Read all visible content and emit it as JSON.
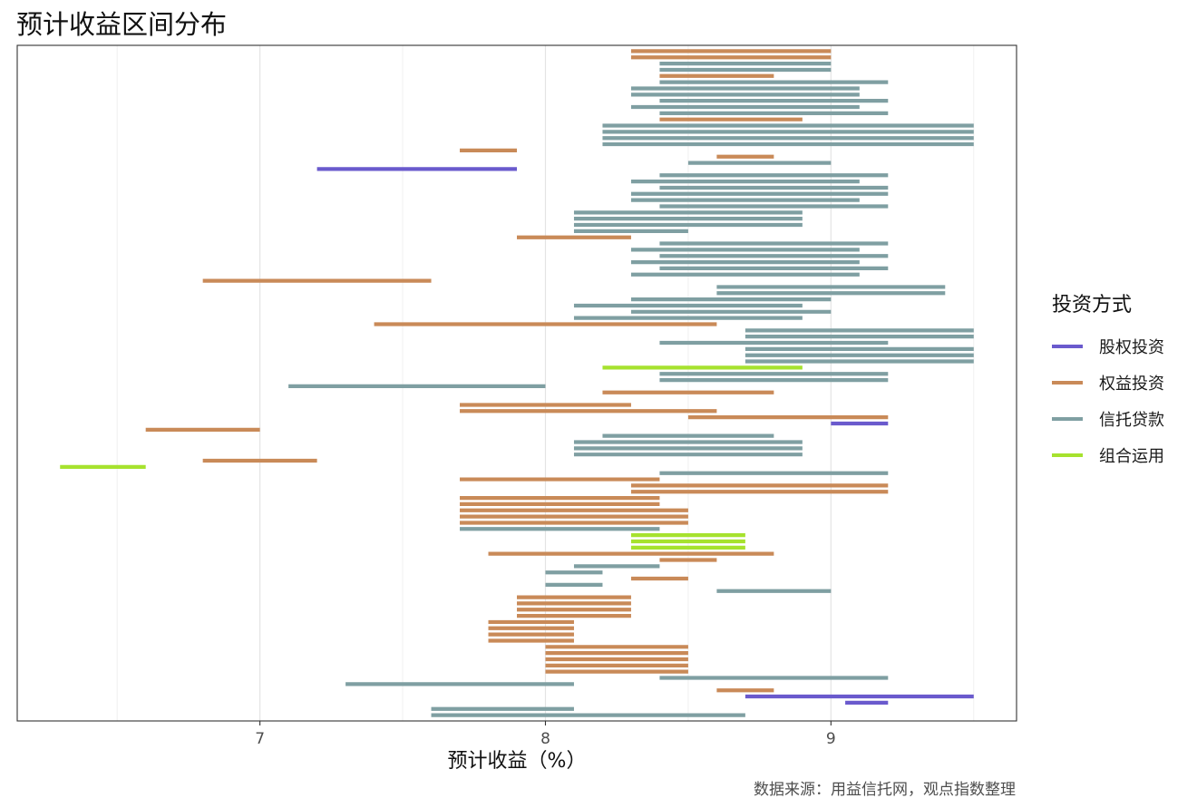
{
  "title": "预计收益区间分布",
  "caption": "数据来源：用益信托网，观点指数整理",
  "colors": {
    "股权投资": "#6a5acd",
    "权益投资": "#c98a58",
    "信托贷款": "#7f9fa2",
    "组合运用": "#a6e22e"
  },
  "chart_data": {
    "type": "bar",
    "orientation": "horizontal-range",
    "title": "预计收益区间分布",
    "xlabel": "预计收益（%）",
    "ylabel": "",
    "xlim": [
      6.15,
      9.65
    ],
    "xticks": [
      7,
      8,
      9
    ],
    "grid": true,
    "legend": {
      "title": "投资方式",
      "position": "right",
      "entries": [
        "股权投资",
        "权益投资",
        "信托贷款",
        "组合运用"
      ]
    },
    "series": [
      {
        "name": "股权投资",
        "ranges": [
          [
            7.2,
            7.9
          ],
          [
            9.0,
            9.2
          ],
          [
            8.7,
            9.5
          ],
          [
            9.05,
            9.2
          ]
        ]
      },
      {
        "name": "权益投资",
        "ranges": [
          [
            8.3,
            9.0
          ],
          [
            8.3,
            9.0
          ],
          [
            8.4,
            8.8
          ],
          [
            8.4,
            8.9
          ],
          [
            7.7,
            7.9
          ],
          [
            8.6,
            8.8
          ],
          [
            7.9,
            8.3
          ],
          [
            6.8,
            7.6
          ],
          [
            7.4,
            8.6
          ],
          [
            8.2,
            8.8
          ],
          [
            8.3,
            8.3
          ],
          [
            7.7,
            8.3
          ],
          [
            7.7,
            8.6
          ],
          [
            8.5,
            9.2
          ],
          [
            6.6,
            7.0
          ],
          [
            6.8,
            7.2
          ],
          [
            7.7,
            8.4
          ],
          [
            8.3,
            9.2
          ],
          [
            8.3,
            9.2
          ],
          [
            7.7,
            8.4
          ],
          [
            7.7,
            8.4
          ],
          [
            7.7,
            8.5
          ],
          [
            7.7,
            8.5
          ],
          [
            7.7,
            8.5
          ],
          [
            7.8,
            8.8
          ],
          [
            8.4,
            8.6
          ],
          [
            8.3,
            8.5
          ],
          [
            7.9,
            8.3
          ],
          [
            7.9,
            8.3
          ],
          [
            7.9,
            8.3
          ],
          [
            7.9,
            8.3
          ],
          [
            7.8,
            8.1
          ],
          [
            7.8,
            8.1
          ],
          [
            7.8,
            8.1
          ],
          [
            7.8,
            8.1
          ],
          [
            8.0,
            8.5
          ],
          [
            8.0,
            8.5
          ],
          [
            8.0,
            8.5
          ],
          [
            8.0,
            8.5
          ],
          [
            8.0,
            8.5
          ],
          [
            8.6,
            8.8
          ]
        ]
      },
      {
        "name": "信托贷款",
        "ranges": [
          [
            8.4,
            9.0
          ],
          [
            8.4,
            9.0
          ],
          [
            8.4,
            9.2
          ],
          [
            8.3,
            9.1
          ],
          [
            8.3,
            9.1
          ],
          [
            8.4,
            9.2
          ],
          [
            8.3,
            9.1
          ],
          [
            8.4,
            9.2
          ],
          [
            8.2,
            9.5
          ],
          [
            8.2,
            9.5
          ],
          [
            8.2,
            9.5
          ],
          [
            8.2,
            9.5
          ],
          [
            8.5,
            9.0
          ],
          [
            8.4,
            9.2
          ],
          [
            8.3,
            9.1
          ],
          [
            8.4,
            9.2
          ],
          [
            8.3,
            9.2
          ],
          [
            8.3,
            9.1
          ],
          [
            8.4,
            9.2
          ],
          [
            8.1,
            8.9
          ],
          [
            8.1,
            8.9
          ],
          [
            8.1,
            8.9
          ],
          [
            8.1,
            8.5
          ],
          [
            8.4,
            9.2
          ],
          [
            8.3,
            9.1
          ],
          [
            8.4,
            9.2
          ],
          [
            8.3,
            9.1
          ],
          [
            8.4,
            9.2
          ],
          [
            8.3,
            9.1
          ],
          [
            8.6,
            9.4
          ],
          [
            8.6,
            9.4
          ],
          [
            8.3,
            9.0
          ],
          [
            8.1,
            8.9
          ],
          [
            8.3,
            9.0
          ],
          [
            8.1,
            8.9
          ],
          [
            8.7,
            9.5
          ],
          [
            8.7,
            9.5
          ],
          [
            8.4,
            9.2
          ],
          [
            8.7,
            9.5
          ],
          [
            8.7,
            9.5
          ],
          [
            8.7,
            9.5
          ],
          [
            8.4,
            9.2
          ],
          [
            8.4,
            9.2
          ],
          [
            7.1,
            8.0
          ],
          [
            8.2,
            8.8
          ],
          [
            8.1,
            8.9
          ],
          [
            8.1,
            8.9
          ],
          [
            8.1,
            8.9
          ],
          [
            8.4,
            9.2
          ],
          [
            7.7,
            8.4
          ],
          [
            8.1,
            8.4
          ],
          [
            8.0,
            8.2
          ],
          [
            8.0,
            8.2
          ],
          [
            8.6,
            9.0
          ],
          [
            8.4,
            9.2
          ],
          [
            7.3,
            8.1
          ],
          [
            7.6,
            8.1
          ],
          [
            7.6,
            8.7
          ]
        ]
      },
      {
        "name": "组合运用",
        "ranges": [
          [
            8.2,
            8.9
          ],
          [
            6.3,
            6.6
          ],
          [
            8.3,
            8.7
          ],
          [
            8.3,
            8.7
          ],
          [
            8.3,
            8.7
          ]
        ]
      }
    ],
    "row_order": [
      [
        "权益投资",
        0
      ],
      [
        "权益投资",
        1
      ],
      [
        "信托贷款",
        0
      ],
      [
        "信托贷款",
        1
      ],
      [
        "权益投资",
        2
      ],
      [
        "信托贷款",
        2
      ],
      [
        "信托贷款",
        3
      ],
      [
        "信托贷款",
        4
      ],
      [
        "信托贷款",
        5
      ],
      [
        "信托贷款",
        6
      ],
      [
        "信托贷款",
        7
      ],
      [
        "权益投资",
        3
      ],
      [
        "信托贷款",
        8
      ],
      [
        "信托贷款",
        9
      ],
      [
        "信托贷款",
        10
      ],
      [
        "信托贷款",
        11
      ],
      [
        "权益投资",
        4
      ],
      [
        "权益投资",
        5
      ],
      [
        "信托贷款",
        12
      ],
      [
        "股权投资",
        0
      ],
      [
        "信托贷款",
        13
      ],
      [
        "信托贷款",
        14
      ],
      [
        "信托贷款",
        15
      ],
      [
        "信托贷款",
        16
      ],
      [
        "信托贷款",
        17
      ],
      [
        "信托贷款",
        18
      ],
      [
        "信托贷款",
        19
      ],
      [
        "信托贷款",
        20
      ],
      [
        "信托贷款",
        21
      ],
      [
        "信托贷款",
        22
      ],
      [
        "权益投资",
        6
      ],
      [
        "信托贷款",
        23
      ],
      [
        "信托贷款",
        24
      ],
      [
        "信托贷款",
        25
      ],
      [
        "信托贷款",
        26
      ],
      [
        "信托贷款",
        27
      ],
      [
        "信托贷款",
        28
      ],
      [
        "权益投资",
        7
      ],
      [
        "信托贷款",
        29
      ],
      [
        "信托贷款",
        30
      ],
      [
        "信托贷款",
        31
      ],
      [
        "信托贷款",
        32
      ],
      [
        "信托贷款",
        33
      ],
      [
        "信托贷款",
        34
      ],
      [
        "权益投资",
        8
      ],
      [
        "信托贷款",
        35
      ],
      [
        "信托贷款",
        36
      ],
      [
        "信托贷款",
        37
      ],
      [
        "信托贷款",
        38
      ],
      [
        "信托贷款",
        39
      ],
      [
        "信托贷款",
        40
      ],
      [
        "组合运用",
        0
      ],
      [
        "信托贷款",
        41
      ],
      [
        "信托贷款",
        42
      ],
      [
        "信托贷款",
        43
      ],
      [
        "权益投资",
        9
      ],
      [
        "权益投资",
        10
      ],
      [
        "权益投资",
        11
      ],
      [
        "权益投资",
        12
      ],
      [
        "权益投资",
        13
      ],
      [
        "股权投资",
        1
      ],
      [
        "权益投资",
        14
      ],
      [
        "信托贷款",
        44
      ],
      [
        "信托贷款",
        45
      ],
      [
        "信托贷款",
        46
      ],
      [
        "信托贷款",
        47
      ],
      [
        "权益投资",
        15
      ],
      [
        "组合运用",
        1
      ],
      [
        "信托贷款",
        48
      ],
      [
        "权益投资",
        16
      ],
      [
        "权益投资",
        17
      ],
      [
        "权益投资",
        18
      ],
      [
        "权益投资",
        19
      ],
      [
        "权益投资",
        20
      ],
      [
        "权益投资",
        21
      ],
      [
        "权益投资",
        22
      ],
      [
        "权益投资",
        23
      ],
      [
        "信托贷款",
        49
      ],
      [
        "组合运用",
        2
      ],
      [
        "组合运用",
        3
      ],
      [
        "组合运用",
        4
      ],
      [
        "权益投资",
        24
      ],
      [
        "权益投资",
        25
      ],
      [
        "信托贷款",
        50
      ],
      [
        "信托贷款",
        51
      ],
      [
        "权益投资",
        26
      ],
      [
        "信托贷款",
        52
      ],
      [
        "信托贷款",
        53
      ],
      [
        "权益投资",
        27
      ],
      [
        "权益投资",
        28
      ],
      [
        "权益投资",
        29
      ],
      [
        "权益投资",
        30
      ],
      [
        "权益投资",
        31
      ],
      [
        "权益投资",
        32
      ],
      [
        "权益投资",
        33
      ],
      [
        "权益投资",
        34
      ],
      [
        "权益投资",
        35
      ],
      [
        "权益投资",
        36
      ],
      [
        "权益投资",
        37
      ],
      [
        "权益投资",
        38
      ],
      [
        "权益投资",
        39
      ],
      [
        "信托贷款",
        54
      ],
      [
        "信托贷款",
        55
      ],
      [
        "权益投资",
        40
      ],
      [
        "股权投资",
        2
      ],
      [
        "股权投资",
        3
      ],
      [
        "信托贷款",
        56
      ],
      [
        "信托贷款",
        57
      ]
    ]
  }
}
